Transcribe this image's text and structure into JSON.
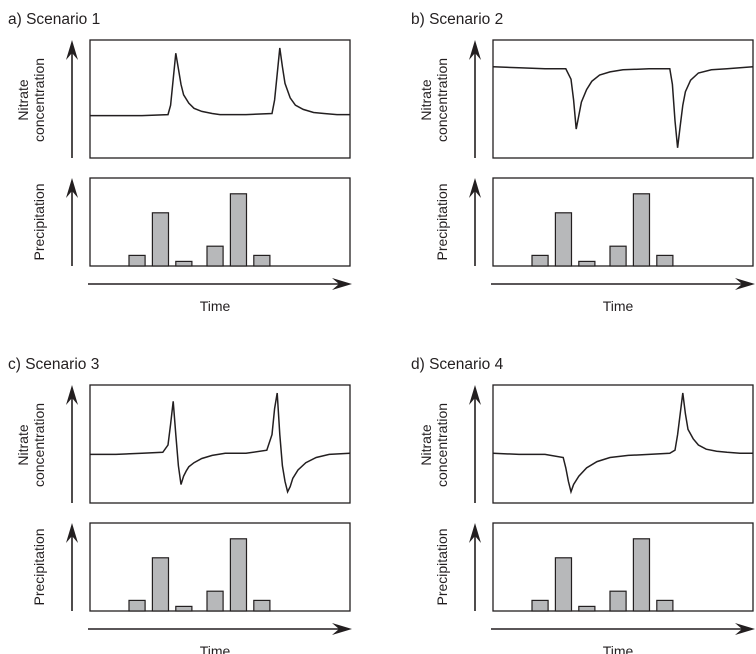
{
  "chart_data": [
    {
      "type": "line",
      "title": "a) Scenario 1",
      "ylabel_top": [
        "Nitrate",
        "concentration"
      ],
      "ylabel_bottom": "Precipitation",
      "xlabel": "Time",
      "nitrate": {
        "x": [
          0,
          10,
          20,
          30,
          31,
          32,
          33,
          34,
          35,
          36,
          38,
          40,
          43,
          47,
          50,
          60,
          70,
          71,
          72,
          73,
          74,
          75,
          77,
          79,
          82,
          86,
          90,
          95,
          100
        ],
        "y": [
          0.35,
          0.35,
          0.35,
          0.36,
          0.45,
          0.7,
          0.95,
          0.8,
          0.65,
          0.55,
          0.47,
          0.42,
          0.39,
          0.37,
          0.36,
          0.36,
          0.37,
          0.5,
          0.75,
          1.0,
          0.82,
          0.66,
          0.52,
          0.45,
          0.41,
          0.38,
          0.37,
          0.36,
          0.36
        ]
      },
      "precipitation": {
        "x": [
          15,
          24,
          33,
          45,
          54,
          63
        ],
        "values": [
          0.14,
          0.7,
          0.06,
          0.26,
          0.95,
          0.14
        ]
      }
    },
    {
      "type": "line",
      "title": "b) Scenario 2",
      "ylabel_top": [
        "Nitrate",
        "concentration"
      ],
      "ylabel_bottom": "Precipitation",
      "xlabel": "Time",
      "nitrate": {
        "x": [
          0,
          10,
          20,
          28,
          30,
          31,
          32,
          33,
          34,
          36,
          38,
          41,
          45,
          50,
          60,
          68,
          69,
          70,
          71,
          72,
          73,
          74,
          76,
          79,
          84,
          90,
          100
        ],
        "y": [
          0.82,
          0.81,
          0.8,
          0.8,
          0.7,
          0.5,
          0.22,
          0.35,
          0.48,
          0.6,
          0.68,
          0.74,
          0.77,
          0.79,
          0.8,
          0.8,
          0.65,
          0.3,
          0.04,
          0.25,
          0.45,
          0.58,
          0.69,
          0.76,
          0.79,
          0.8,
          0.82
        ]
      },
      "precipitation": {
        "x": [
          15,
          24,
          33,
          45,
          54,
          63
        ],
        "values": [
          0.14,
          0.7,
          0.06,
          0.26,
          0.95,
          0.14
        ]
      }
    },
    {
      "type": "line",
      "title": "c) Scenario 3",
      "ylabel_top": [
        "Nitrate",
        "concentration"
      ],
      "ylabel_bottom": "Precipitation",
      "xlabel": "Time",
      "nitrate": {
        "x": [
          0,
          10,
          20,
          28,
          30,
          31,
          32,
          33,
          34,
          35,
          36,
          37,
          38,
          40,
          43,
          47,
          52,
          60,
          68,
          70,
          71,
          72,
          73,
          74,
          75,
          76,
          77,
          78,
          80,
          83,
          87,
          92,
          100
        ],
        "y": [
          0.41,
          0.41,
          0.42,
          0.43,
          0.5,
          0.7,
          0.92,
          0.6,
          0.3,
          0.12,
          0.2,
          0.25,
          0.29,
          0.33,
          0.37,
          0.4,
          0.42,
          0.42,
          0.45,
          0.6,
          0.85,
          1.0,
          0.6,
          0.3,
          0.15,
          0.05,
          0.1,
          0.18,
          0.26,
          0.33,
          0.38,
          0.41,
          0.42
        ]
      },
      "precipitation": {
        "x": [
          15,
          24,
          33,
          45,
          54,
          63
        ],
        "values": [
          0.14,
          0.7,
          0.06,
          0.26,
          0.95,
          0.14
        ]
      }
    },
    {
      "type": "line",
      "title": "d) Scenario 4",
      "ylabel_top": [
        "Nitrate",
        "concentration"
      ],
      "ylabel_bottom": "Precipitation",
      "xlabel": "Time",
      "nitrate": {
        "x": [
          0,
          10,
          20,
          27,
          28,
          29,
          30,
          31,
          33,
          36,
          40,
          45,
          52,
          60,
          68,
          70,
          71,
          72,
          73,
          74,
          75,
          77,
          79,
          82,
          86,
          90,
          95,
          100
        ],
        "y": [
          0.42,
          0.41,
          0.41,
          0.38,
          0.28,
          0.15,
          0.05,
          0.12,
          0.2,
          0.28,
          0.34,
          0.38,
          0.4,
          0.41,
          0.42,
          0.45,
          0.6,
          0.8,
          1.0,
          0.8,
          0.65,
          0.56,
          0.5,
          0.46,
          0.44,
          0.43,
          0.42,
          0.42
        ]
      },
      "precipitation": {
        "x": [
          15,
          24,
          33,
          45,
          54,
          63
        ],
        "values": [
          0.14,
          0.7,
          0.06,
          0.26,
          0.95,
          0.14
        ]
      }
    }
  ]
}
